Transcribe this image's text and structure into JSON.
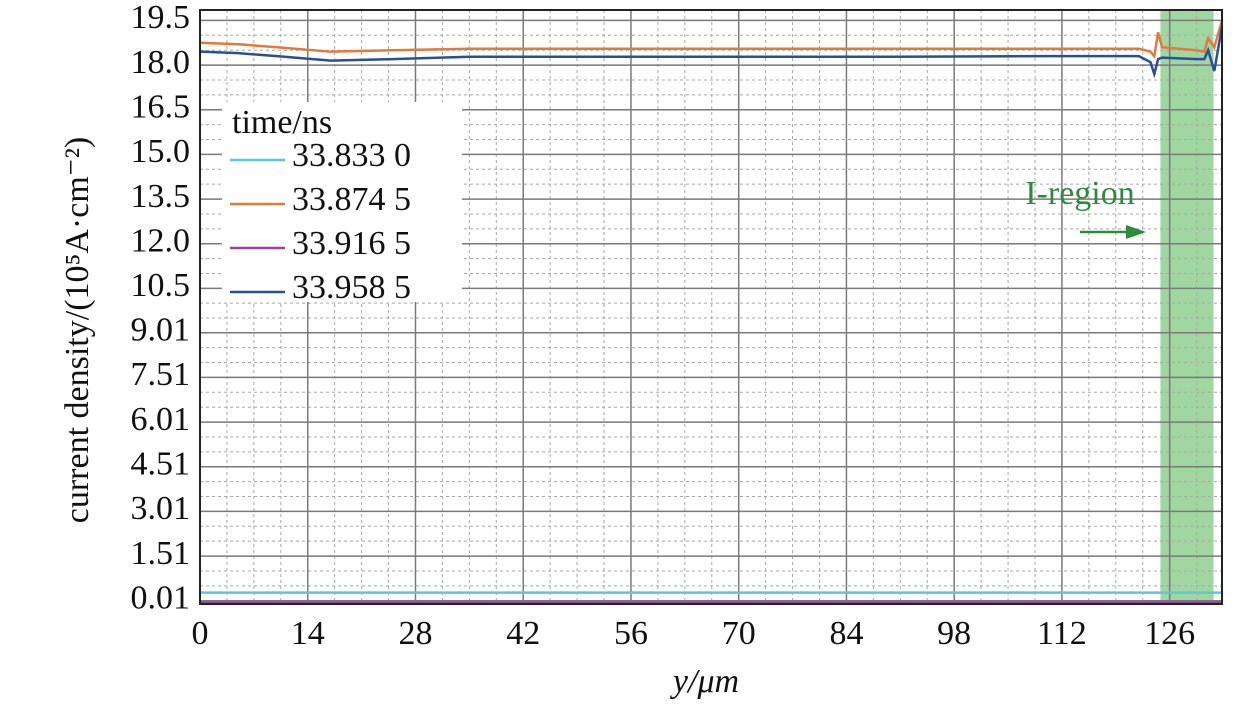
{
  "chart_data": {
    "type": "line",
    "xlabel": "y/μm",
    "ylabel": "current density/(10⁵A·cm⁻²)",
    "legend_title": "time/ns",
    "legend": "upper left",
    "grid": true,
    "xlim": [
      0,
      132.8
    ],
    "ylim": [
      -0.1,
      19.85
    ],
    "xticks": [
      0,
      14,
      28,
      42,
      56,
      70,
      84,
      98,
      112,
      126
    ],
    "yticks": [
      0.01,
      1.51,
      3.01,
      4.51,
      6.01,
      7.51,
      9.01,
      10.5,
      {
        "value": 12,
        "label": "12.0"
      },
      13.5,
      {
        "value": 15,
        "label": "15.0"
      },
      16.5,
      {
        "value": 18,
        "label": "18.0"
      },
      19.5
    ],
    "x": [
      0,
      5,
      10,
      17,
      25,
      35,
      60,
      90,
      110,
      122,
      123.5,
      124,
      124.5,
      125,
      129.5,
      130.5,
      131,
      131.8,
      132.8
    ],
    "series": [
      {
        "name": "33.833 0",
        "color": "#5cc8d6",
        "values": [
          0.28,
          0.28,
          0.28,
          0.28,
          0.28,
          0.28,
          0.28,
          0.28,
          0.28,
          0.28,
          0.28,
          0.28,
          0.28,
          0.28,
          0.28,
          0.28,
          0.28,
          0.28,
          0.28
        ]
      },
      {
        "name": "33.874 5",
        "color": "#e07b3c",
        "values": [
          18.75,
          18.7,
          18.6,
          18.45,
          18.5,
          18.55,
          18.55,
          18.55,
          18.55,
          18.55,
          18.45,
          18.3,
          19.1,
          18.6,
          18.5,
          18.45,
          18.9,
          18.6,
          19.5
        ]
      },
      {
        "name": "33.916 5",
        "color": "#a040a0",
        "values": [
          -0.06,
          -0.06,
          -0.06,
          -0.06,
          -0.06,
          -0.06,
          -0.06,
          -0.06,
          -0.06,
          -0.06,
          -0.06,
          -0.06,
          -0.06,
          -0.06,
          -0.06,
          -0.06,
          -0.06,
          -0.06,
          -0.06
        ]
      },
      {
        "name": "33.958 5",
        "color": "#2a4f96",
        "values": [
          18.45,
          18.4,
          18.3,
          18.15,
          18.2,
          18.28,
          18.28,
          18.28,
          18.3,
          18.3,
          18.1,
          17.7,
          18.2,
          18.25,
          18.2,
          18.2,
          18.5,
          17.8,
          19.3
        ]
      }
    ],
    "shaded_region": {
      "range": [
        124.8,
        131.7
      ],
      "color": "#8fcf8f"
    },
    "annotation": {
      "text": "I-region",
      "color": "#2e8b3e"
    }
  }
}
